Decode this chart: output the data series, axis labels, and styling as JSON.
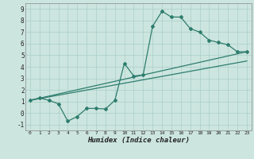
{
  "title": "",
  "xlabel": "Humidex (Indice chaleur)",
  "xlim": [
    -0.5,
    23.5
  ],
  "ylim": [
    -1.5,
    9.5
  ],
  "xticks": [
    0,
    1,
    2,
    3,
    4,
    5,
    6,
    7,
    8,
    9,
    10,
    11,
    12,
    13,
    14,
    15,
    16,
    17,
    18,
    19,
    20,
    21,
    22,
    23
  ],
  "yticks": [
    -1,
    0,
    1,
    2,
    3,
    4,
    5,
    6,
    7,
    8,
    9
  ],
  "bg_color": "#cce5df",
  "line_color": "#2e7d6e",
  "grid_color": "#aacfc8",
  "line1_x": [
    0,
    1,
    2,
    3,
    4,
    5,
    6,
    7,
    8,
    9,
    10,
    11,
    12,
    13,
    14,
    15,
    16,
    17,
    18,
    19,
    20,
    21,
    22,
    23
  ],
  "line1_y": [
    1.1,
    1.3,
    1.1,
    0.8,
    -0.7,
    -0.3,
    0.4,
    0.4,
    0.35,
    1.1,
    4.3,
    3.2,
    3.3,
    7.5,
    8.8,
    8.3,
    8.3,
    7.3,
    7.0,
    6.3,
    6.1,
    5.9,
    5.3,
    5.3
  ],
  "line2_x": [
    0,
    23
  ],
  "line2_y": [
    1.1,
    5.3
  ],
  "line3_x": [
    0,
    23
  ],
  "line3_y": [
    1.1,
    4.5
  ]
}
